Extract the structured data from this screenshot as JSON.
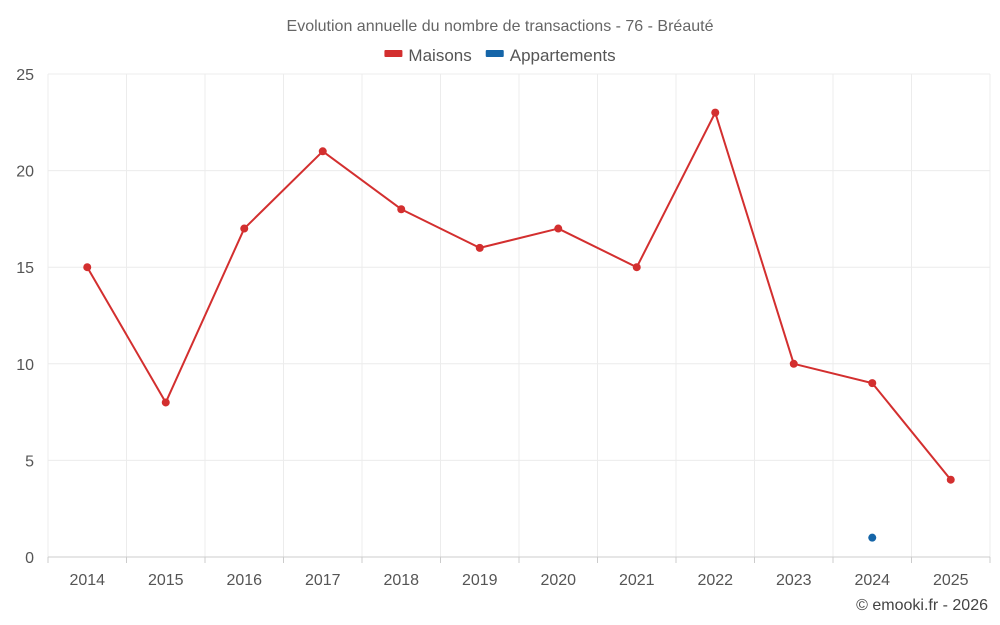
{
  "chart_data": {
    "type": "line",
    "title": "Evolution annuelle du nombre de transactions - 76 - Bréauté",
    "xlabel": "",
    "ylabel": "",
    "categories": [
      "2014",
      "2015",
      "2016",
      "2017",
      "2018",
      "2019",
      "2020",
      "2021",
      "2022",
      "2023",
      "2024",
      "2025"
    ],
    "ylim": [
      0,
      25
    ],
    "yticks": [
      0,
      5,
      10,
      15,
      20,
      25
    ],
    "grid": true,
    "legend_position": "top-center",
    "series": [
      {
        "name": "Maisons",
        "color": "#d32f2f",
        "values": [
          15,
          8,
          17,
          21,
          18,
          16,
          17,
          15,
          23,
          10,
          9,
          4
        ]
      },
      {
        "name": "Appartements",
        "color": "#1565a8",
        "values": [
          null,
          null,
          null,
          null,
          null,
          null,
          null,
          null,
          null,
          null,
          1,
          null
        ]
      }
    ]
  },
  "credit": "© emooki.fr - 2026"
}
